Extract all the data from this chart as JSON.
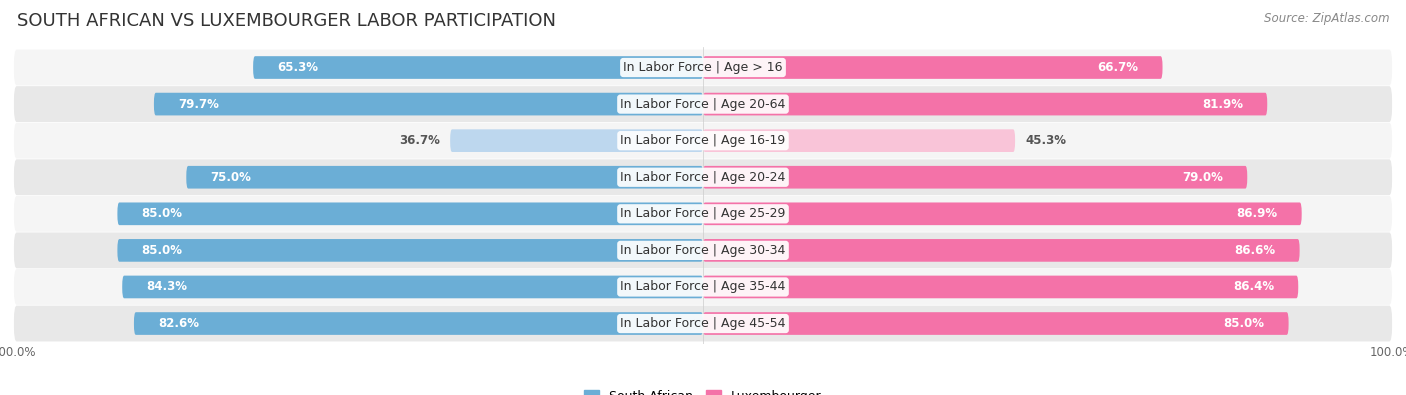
{
  "title": "SOUTH AFRICAN VS LUXEMBOURGER LABOR PARTICIPATION",
  "source": "Source: ZipAtlas.com",
  "categories": [
    "In Labor Force | Age > 16",
    "In Labor Force | Age 20-64",
    "In Labor Force | Age 16-19",
    "In Labor Force | Age 20-24",
    "In Labor Force | Age 25-29",
    "In Labor Force | Age 30-34",
    "In Labor Force | Age 35-44",
    "In Labor Force | Age 45-54"
  ],
  "south_african": [
    65.3,
    79.7,
    36.7,
    75.0,
    85.0,
    85.0,
    84.3,
    82.6
  ],
  "luxembourger": [
    66.7,
    81.9,
    45.3,
    79.0,
    86.9,
    86.6,
    86.4,
    85.0
  ],
  "sa_color": "#6BAED6",
  "lux_color": "#F472A8",
  "sa_color_light": "#BDD7EE",
  "lux_color_light": "#F9C4D8",
  "row_bg_odd": "#F5F5F5",
  "row_bg_even": "#E8E8E8",
  "max_value": 100.0,
  "legend_sa": "South African",
  "legend_lux": "Luxembourger",
  "title_fontsize": 13,
  "label_fontsize": 9,
  "value_fontsize": 8.5,
  "source_fontsize": 8.5
}
